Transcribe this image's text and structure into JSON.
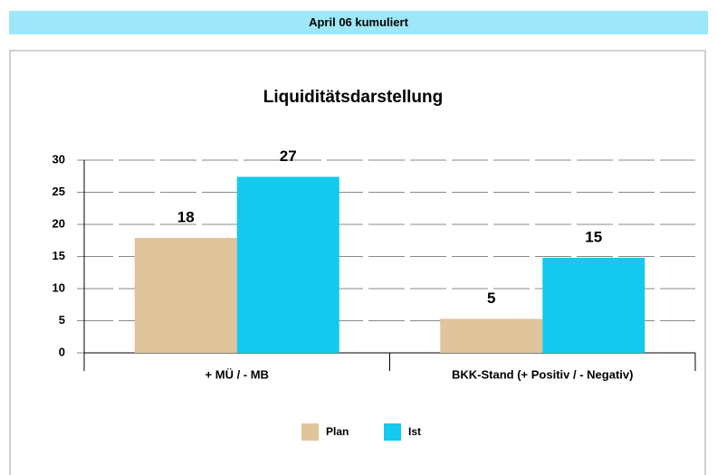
{
  "header": {
    "title": "April 06 kumuliert"
  },
  "chart_data": {
    "type": "bar",
    "title": "Liquiditätsdarstellung",
    "categories": [
      "+ MÜ / - MB",
      "BKK-Stand (+ Positiv / - Negativ)"
    ],
    "series": [
      {
        "name": "Plan",
        "color": "#dfc49c",
        "values": [
          17.9,
          5.3
        ],
        "value_labels": [
          "18",
          "5"
        ]
      },
      {
        "name": "Ist",
        "color": "#14c8ee",
        "values": [
          27.4,
          14.8
        ],
        "value_labels": [
          "27",
          "15"
        ]
      }
    ],
    "ylim": [
      0,
      30
    ],
    "yticks": [
      0,
      5,
      10,
      15,
      20,
      25,
      30
    ],
    "grid": true,
    "legend": "bottom"
  }
}
